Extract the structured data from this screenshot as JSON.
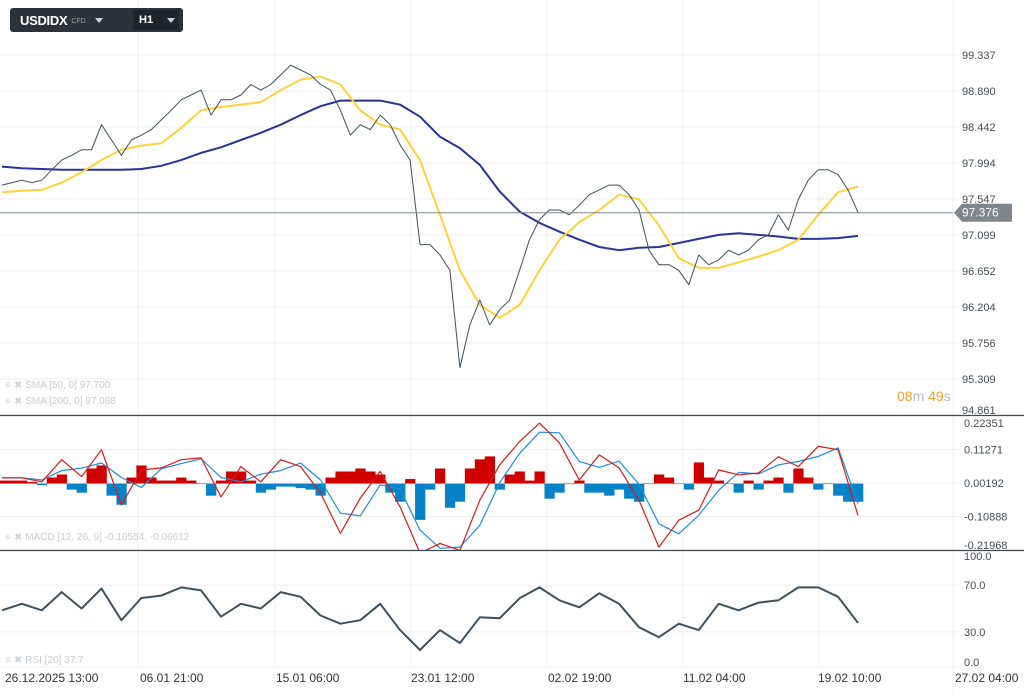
{
  "toolbar": {
    "symbol": "USDIDX",
    "symbol_type": "CFD",
    "timeframe": "H1"
  },
  "timer": {
    "minutes": "08",
    "minutes_unit": "m",
    "seconds": "49",
    "seconds_unit": "s"
  },
  "legends": {
    "sma50": "SMA [50, 0] 97.700",
    "sma200": "SMA [200, 0] 97.088",
    "macd": "MACD [12, 26, 9] -0.10554,  -0.06612",
    "rsi": "RSI [20] 37.7"
  },
  "icons": {
    "legend_menu": "hamburger-icon",
    "legend_remove": "close-x-icon",
    "dropdown": "caret-down-icon"
  },
  "colors": {
    "price": "#3f505b",
    "sma50": "#fdd33a",
    "sma200": "#29349a",
    "macd_line": "#d81b1b",
    "signal_line": "#1e8fd6",
    "hist_pos": "#d10000",
    "hist_neg": "#0682c8",
    "rsi": "#3f505b",
    "current_price_badge": "#7d878d",
    "timer": "#f5a01f"
  },
  "x_tick_labels": [
    "26.12.2025  13:00",
    "06.01  21:00",
    "15.01  06:00",
    "23.01  12:00",
    "02.02  19:00",
    "11.02  04:00",
    "19.02  10:00",
    "27.02  04:00"
  ],
  "chart_data": [
    {
      "type": "line",
      "title": "",
      "ylim": [
        94.861,
        99.337
      ],
      "y_tick_labels": [
        "99.337",
        "98.890",
        "98.442",
        "97.994",
        "97.547",
        "97.099",
        "96.652",
        "96.204",
        "95.756",
        "95.309",
        "94.861"
      ],
      "current_price": "97.376",
      "series": [
        {
          "name": "USDIDX",
          "values": [
            97.72,
            97.75,
            97.78,
            97.75,
            97.78,
            97.91,
            98.03,
            98.09,
            98.16,
            98.16,
            98.47,
            98.28,
            98.09,
            98.28,
            98.34,
            98.41,
            98.53,
            98.65,
            98.78,
            98.84,
            98.9,
            98.59,
            98.78,
            98.78,
            98.84,
            98.97,
            98.9,
            98.97,
            99.09,
            99.21,
            99.15,
            99.09,
            98.97,
            98.9,
            98.65,
            98.34,
            98.47,
            98.41,
            98.59,
            98.47,
            98.22,
            98.03,
            96.98,
            96.98,
            96.85,
            96.66,
            95.45,
            95.98,
            96.29,
            95.98,
            96.17,
            96.29,
            96.66,
            97.04,
            97.29,
            97.41,
            97.41,
            97.35,
            97.47,
            97.6,
            97.66,
            97.72,
            97.72,
            97.6,
            97.41,
            96.91,
            96.73,
            96.73,
            96.66,
            96.48,
            96.85,
            96.73,
            96.79,
            96.91,
            96.85,
            96.91,
            97.04,
            97.1,
            97.35,
            97.16,
            97.54,
            97.78,
            97.91,
            97.91,
            97.85,
            97.66,
            97.38
          ]
        },
        {
          "name": "SMA [50, 0]",
          "values": [
            97.63,
            97.65,
            97.66,
            97.75,
            97.88,
            98.03,
            98.16,
            98.21,
            98.24,
            98.43,
            98.65,
            98.69,
            98.72,
            98.75,
            98.9,
            99.03,
            99.07,
            98.97,
            98.65,
            98.47,
            98.41,
            98.03,
            97.35,
            96.66,
            96.23,
            96.07,
            96.23,
            96.66,
            97.04,
            97.26,
            97.41,
            97.6,
            97.54,
            97.22,
            96.81,
            96.69,
            96.69,
            96.76,
            96.83,
            96.91,
            97.04,
            97.35,
            97.63,
            97.7
          ]
        },
        {
          "name": "SMA [200, 0]",
          "values": [
            97.95,
            97.93,
            97.92,
            97.91,
            97.91,
            97.91,
            97.91,
            97.92,
            97.96,
            98.03,
            98.12,
            98.19,
            98.28,
            98.37,
            98.47,
            98.59,
            98.7,
            98.77,
            98.77,
            98.77,
            98.72,
            98.57,
            98.32,
            98.18,
            97.97,
            97.64,
            97.39,
            97.25,
            97.14,
            97.04,
            96.95,
            96.91,
            96.94,
            96.95,
            97.0,
            97.05,
            97.1,
            97.12,
            97.1,
            97.08,
            97.05,
            97.05,
            97.06,
            97.088
          ]
        }
      ]
    },
    {
      "type": "bar",
      "title": "",
      "ylim": [
        -0.21968,
        0.22351
      ],
      "y_tick_labels": [
        "0.22351",
        "0.11271",
        "0.00192",
        "-0.10888",
        "-0.21968"
      ],
      "histogram": [
        0.01,
        0.01,
        0.01,
        0.005,
        -0.005,
        0.02,
        0.03,
        -0.02,
        -0.03,
        0.05,
        0.06,
        -0.04,
        -0.07,
        0.02,
        0.06,
        0.02,
        0.01,
        0.01,
        0.02,
        0.01,
        0.0,
        -0.04,
        0.01,
        0.04,
        0.04,
        0.01,
        -0.03,
        -0.02,
        -0.01,
        -0.01,
        -0.015,
        -0.02,
        -0.04,
        0.02,
        0.04,
        0.04,
        0.05,
        0.04,
        0.03,
        -0.03,
        -0.06,
        0.015,
        -0.12,
        -0.02,
        0.05,
        -0.08,
        -0.06,
        0.05,
        0.08,
        0.09,
        -0.02,
        0.03,
        0.04,
        0.01,
        0.04,
        -0.05,
        -0.03,
        0.0,
        0.01,
        -0.03,
        -0.03,
        -0.04,
        -0.02,
        -0.05,
        -0.06,
        0.0,
        0.03,
        0.02,
        0.0,
        -0.02,
        0.07,
        0.02,
        0.01,
        0.0,
        -0.03,
        0.01,
        -0.02,
        0.01,
        0.02,
        -0.03,
        0.05,
        0.02,
        -0.02,
        0.0,
        -0.04,
        -0.06,
        -0.06
      ],
      "series": [
        {
          "name": "MACD",
          "values": [
            0.019,
            0.019,
            0.006,
            0.079,
            0.023,
            0.112,
            -0.071,
            0.045,
            0.052,
            0.079,
            0.085,
            -0.044,
            0.056,
            0.006,
            0.079,
            0.056,
            -0.031,
            -0.165,
            -0.048,
            0.04,
            -0.077,
            -0.23,
            -0.198,
            -0.221,
            -0.055,
            0.062,
            0.139,
            0.2,
            0.135,
            0.012,
            0.095,
            0.052,
            -0.055,
            -0.21,
            -0.121,
            -0.088,
            0.045,
            0.029,
            0.035,
            0.089,
            0.056,
            0.123,
            0.112,
            -0.10554
          ]
        },
        {
          "name": "Signal",
          "values": [
            0.019,
            0.019,
            0.012,
            0.043,
            0.051,
            0.068,
            0.02,
            -0.013,
            0.049,
            0.066,
            0.082,
            0.02,
            0.006,
            0.031,
            0.043,
            0.068,
            0.012,
            -0.098,
            -0.107,
            -0.004,
            -0.018,
            -0.154,
            -0.214,
            -0.21,
            -0.138,
            0.003,
            0.1,
            0.17,
            0.168,
            0.073,
            0.054,
            0.074,
            -0.002,
            -0.133,
            -0.166,
            -0.105,
            -0.022,
            0.037,
            0.032,
            0.062,
            0.073,
            0.09,
            0.118,
            -0.06612
          ]
        }
      ]
    },
    {
      "type": "line",
      "title": "",
      "ylim": [
        0,
        100
      ],
      "y_ticks": [
        100,
        70,
        30,
        0
      ],
      "y_tick_labels": [
        "100.0",
        "70.0",
        "30.0",
        "0.0"
      ],
      "series": [
        {
          "name": "RSI [20]",
          "values": [
            48.5,
            54,
            48.5,
            64,
            50,
            67,
            40,
            59,
            61,
            68,
            65.5,
            43,
            54,
            50,
            64,
            60,
            44,
            37,
            40,
            54,
            31.5,
            14.5,
            31.5,
            20.4,
            42.5,
            41.7,
            58.7,
            68,
            57,
            51,
            63,
            54,
            34,
            25.5,
            37,
            31.5,
            54,
            48.5,
            55,
            57,
            68,
            68,
            60,
            37.7
          ]
        }
      ]
    }
  ]
}
